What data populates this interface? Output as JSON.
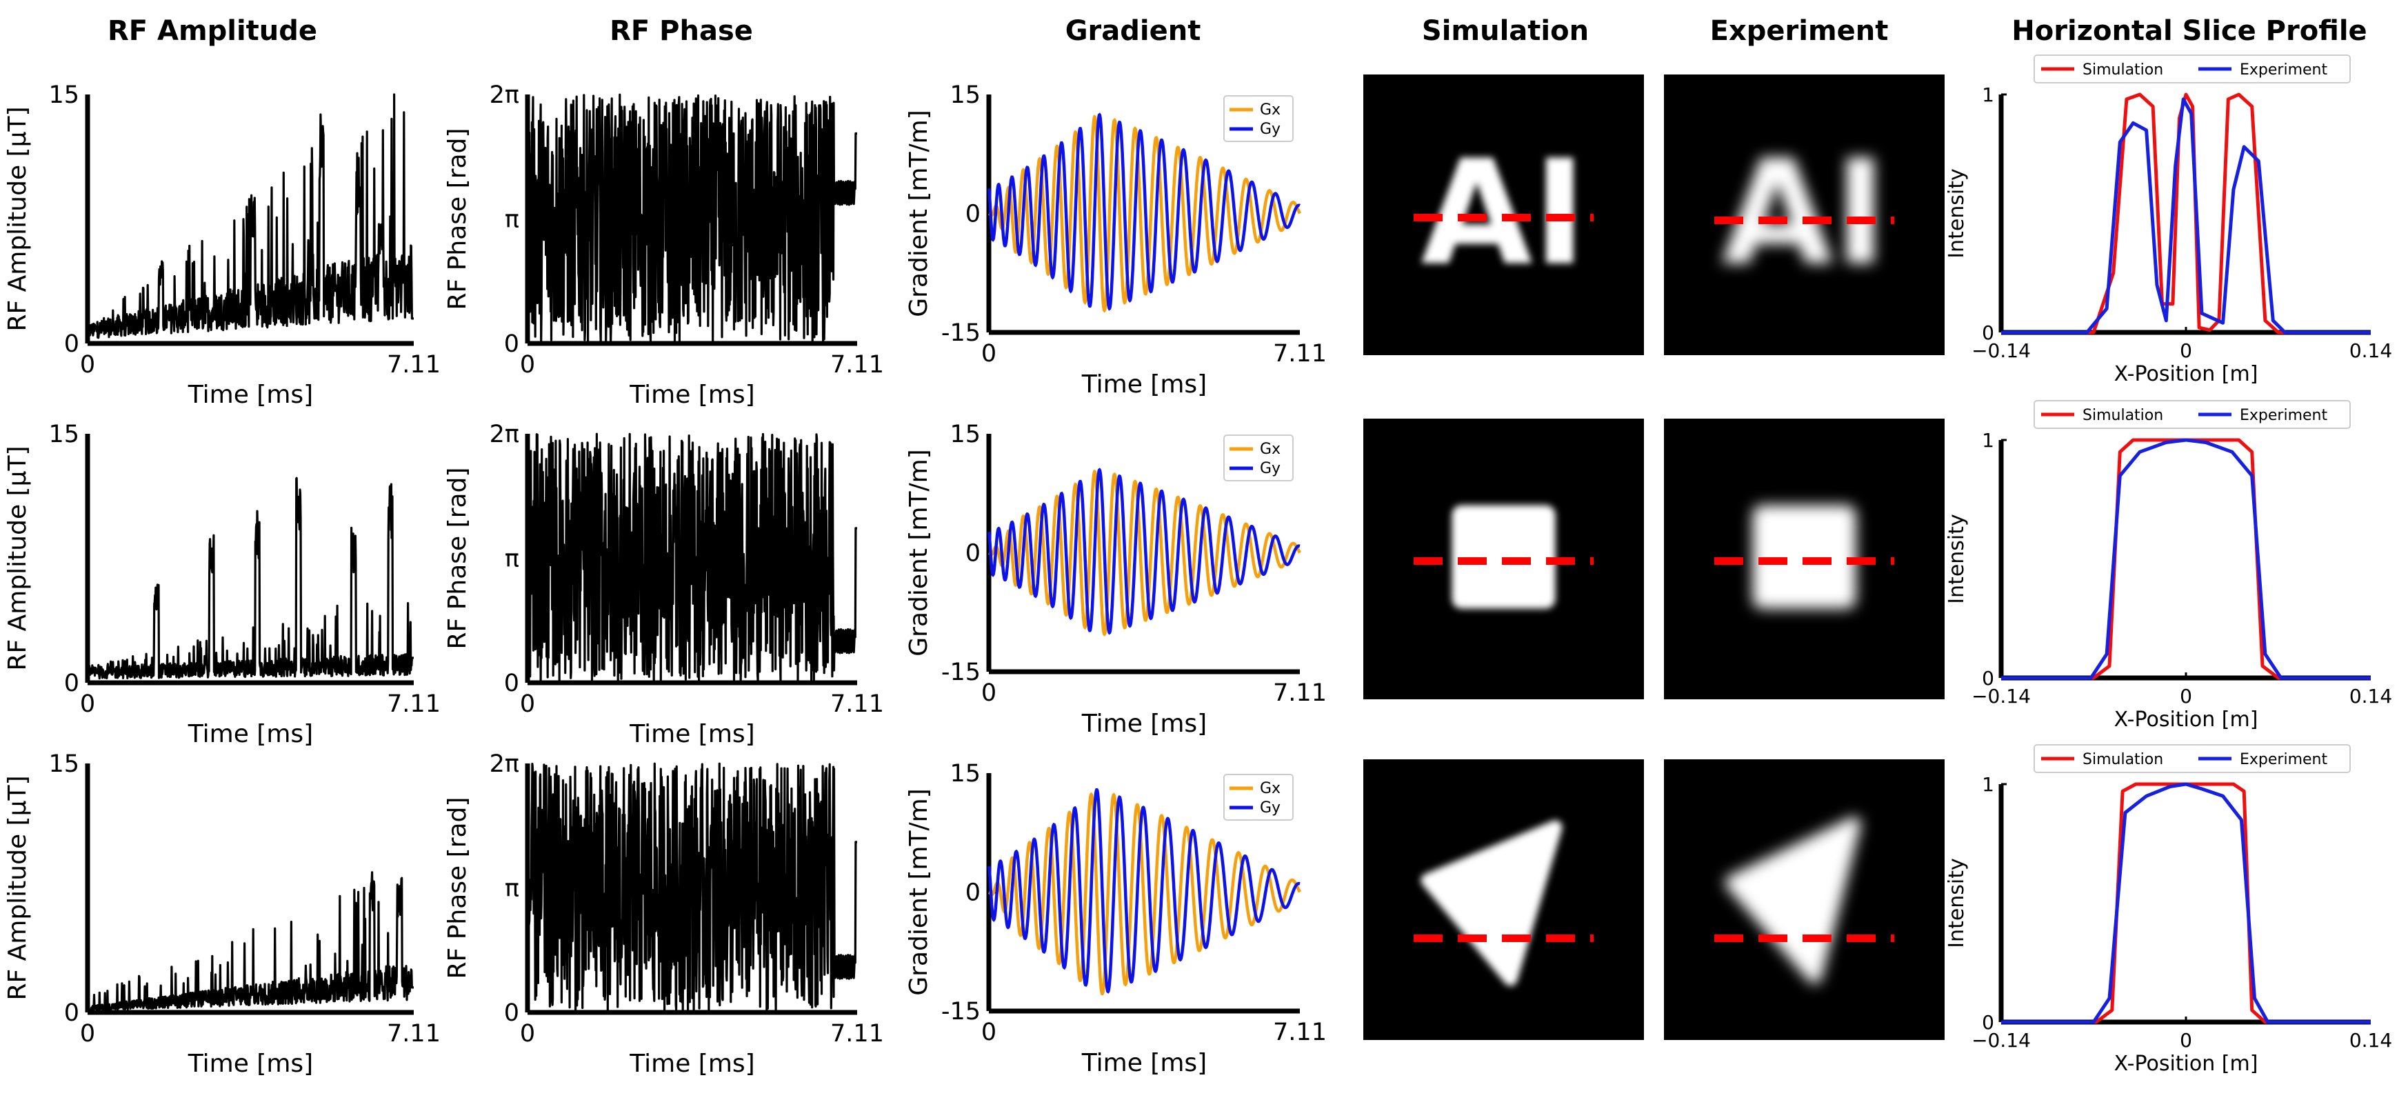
{
  "column_titles": [
    "RF Amplitude",
    "RF Phase",
    "Gradient",
    "Simulation",
    "Experiment",
    "Horizontal Slice Profile"
  ],
  "colors": {
    "trace": "#000000",
    "gx": "#f5a10f",
    "gy": "#0d12e8",
    "simulation": "#ee1010",
    "experiment": "#1520e0",
    "dashed_line": "#ff0000",
    "image_bg": "#000000"
  },
  "chart_data": [
    {
      "type": "line",
      "panel": "rf-amplitude",
      "row": 1,
      "xlabel": "Time [ms]",
      "ylabel": "RF Amplitude [μT]",
      "xlim": [
        0,
        7.11
      ],
      "ylim": [
        0,
        15
      ],
      "xticklabels": [
        "0",
        "7.11"
      ],
      "yticklabels": [
        "0",
        "15"
      ],
      "trend": {
        "base": [
          1,
          5
        ],
        "peak_times": [
          1.6,
          3.6,
          5.1,
          5.9,
          6.4
        ],
        "peak_values": [
          5,
          9,
          13.8,
          10.5,
          7.3
        ]
      }
    },
    {
      "type": "line",
      "panel": "rf-phase",
      "row": 1,
      "xlabel": "Time [ms]",
      "ylabel": "RF Phase [rad]",
      "xlim": [
        0,
        7.11
      ],
      "ylim": [
        0,
        6.283
      ],
      "xticklabels": [
        "0",
        "7.11"
      ],
      "yticklabels": [
        "0",
        "π",
        "2π"
      ],
      "end_values": [
        3.8,
        5.3
      ]
    },
    {
      "type": "line",
      "panel": "gradient",
      "row": 1,
      "xlabel": "Time [ms]",
      "ylabel": "Gradient [mT/m]",
      "xlim": [
        0,
        7.11
      ],
      "ylim": [
        -15,
        15
      ],
      "xticklabels": [
        "0",
        "7.11"
      ],
      "yticklabels": [
        "-15",
        "0",
        "15"
      ],
      "series": [
        {
          "name": "Gx",
          "peak_amplitude": 12.5
        },
        {
          "name": "Gy",
          "peak_amplitude": 12.5
        }
      ],
      "cycles": 16
    },
    {
      "type": "line",
      "panel": "horizontal-slice-profile",
      "row": 1,
      "xlabel": "X-Position [m]",
      "ylabel": "Intensity",
      "xlim": [
        -0.14,
        0.14
      ],
      "ylim": [
        0,
        1
      ],
      "xticklabels": [
        "−0.14",
        "0",
        "0.14"
      ],
      "yticklabels": [
        "0",
        "1"
      ],
      "series": [
        {
          "name": "Simulation",
          "x": [
            -0.14,
            -0.07,
            -0.055,
            -0.045,
            -0.035,
            -0.025,
            -0.018,
            -0.01,
            -0.005,
            0.0,
            0.005,
            0.01,
            0.018,
            0.025,
            0.032,
            0.04,
            0.05,
            0.06,
            0.07,
            0.14
          ],
          "y": [
            0,
            0,
            0.25,
            0.98,
            1.0,
            0.95,
            0.12,
            0.12,
            0.9,
            1.0,
            0.95,
            0.02,
            0.01,
            0.05,
            0.98,
            1.0,
            0.95,
            0.05,
            0,
            0
          ]
        },
        {
          "name": "Experiment",
          "x": [
            -0.14,
            -0.075,
            -0.06,
            -0.05,
            -0.04,
            -0.03,
            -0.022,
            -0.015,
            -0.008,
            -0.002,
            0.004,
            0.012,
            0.02,
            0.028,
            0.036,
            0.044,
            0.055,
            0.066,
            0.075,
            0.14
          ],
          "y": [
            0,
            0,
            0.1,
            0.8,
            0.88,
            0.85,
            0.2,
            0.05,
            0.7,
            0.98,
            0.92,
            0.08,
            0.06,
            0.04,
            0.6,
            0.78,
            0.72,
            0.05,
            0,
            0
          ]
        }
      ]
    },
    {
      "type": "line",
      "panel": "rf-amplitude",
      "row": 2,
      "xlabel": "Time [ms]",
      "ylabel": "RF Amplitude [μT]",
      "xlim": [
        0,
        7.11
      ],
      "ylim": [
        0,
        15
      ],
      "xticklabels": [
        "0",
        "7.11"
      ],
      "yticklabels": [
        "0",
        "15"
      ],
      "trend": {
        "base": [
          0.8,
          1.5
        ],
        "peak_times": [
          1.5,
          2.7,
          3.7,
          4.6,
          5.8,
          6.6
        ],
        "peak_values": [
          6,
          9,
          10.5,
          12.5,
          9.5,
          12
        ]
      }
    },
    {
      "type": "line",
      "panel": "rf-phase",
      "row": 2,
      "xlabel": "Time [ms]",
      "ylabel": "RF Phase [rad]",
      "xlim": [
        0,
        7.11
      ],
      "ylim": [
        0,
        6.283
      ],
      "xticklabels": [
        "0",
        "7.11"
      ],
      "yticklabels": [
        "0",
        "π",
        "2π"
      ],
      "end_values": [
        1.05,
        3.9
      ]
    },
    {
      "type": "line",
      "panel": "gradient",
      "row": 2,
      "xlabel": "Time [ms]",
      "ylabel": "Gradient [mT/m]",
      "xlim": [
        0,
        7.11
      ],
      "ylim": [
        -15,
        15
      ],
      "xticklabels": [
        "0",
        "7.11"
      ],
      "yticklabels": [
        "-15",
        "0",
        "15"
      ],
      "series": [
        {
          "name": "Gx",
          "peak_amplitude": 10.5
        },
        {
          "name": "Gy",
          "peak_amplitude": 10.5
        }
      ],
      "cycles": 16
    },
    {
      "type": "line",
      "panel": "horizontal-slice-profile",
      "row": 2,
      "xlabel": "X-Position [m]",
      "ylabel": "Intensity",
      "xlim": [
        -0.14,
        0.14
      ],
      "ylim": [
        0,
        1
      ],
      "xticklabels": [
        "−0.14",
        "0",
        "0.14"
      ],
      "yticklabels": [
        "0",
        "1"
      ],
      "series": [
        {
          "name": "Simulation",
          "x": [
            -0.14,
            -0.07,
            -0.058,
            -0.05,
            -0.04,
            0.0,
            0.04,
            0.05,
            0.058,
            0.07,
            0.14
          ],
          "y": [
            0,
            0,
            0.05,
            0.95,
            1.0,
            1.0,
            1.0,
            0.95,
            0.05,
            0,
            0
          ]
        },
        {
          "name": "Experiment",
          "x": [
            -0.14,
            -0.072,
            -0.06,
            -0.05,
            -0.035,
            -0.015,
            0.0,
            0.015,
            0.035,
            0.05,
            0.06,
            0.072,
            0.14
          ],
          "y": [
            0,
            0,
            0.1,
            0.85,
            0.95,
            0.99,
            1.0,
            0.99,
            0.95,
            0.85,
            0.1,
            0,
            0
          ]
        }
      ]
    },
    {
      "type": "line",
      "panel": "rf-amplitude",
      "row": 3,
      "xlabel": "Time [ms]",
      "ylabel": "RF Amplitude [μT]",
      "xlim": [
        0,
        7.11
      ],
      "ylim": [
        0,
        15
      ],
      "xticklabels": [
        "0",
        "7.11"
      ],
      "yticklabels": [
        "0",
        "15"
      ],
      "trend": {
        "base": [
          0.3,
          2.5
        ],
        "peak_times": [
          6.2,
          6.8
        ],
        "peak_values": [
          8.5,
          8.2
        ]
      }
    },
    {
      "type": "line",
      "panel": "rf-phase",
      "row": 3,
      "xlabel": "Time [ms]",
      "ylabel": "RF Phase [rad]",
      "xlim": [
        0,
        7.11
      ],
      "ylim": [
        0,
        6.283
      ],
      "xticklabels": [
        "0",
        "7.11"
      ],
      "yticklabels": [
        "0",
        "π",
        "2π"
      ],
      "end_values": [
        1.15,
        4.3
      ]
    },
    {
      "type": "line",
      "panel": "gradient",
      "row": 3,
      "xlabel": "Time [ms]",
      "ylabel": "Gradient [mT/m]",
      "xlim": [
        0,
        7.11
      ],
      "ylim": [
        -15,
        15
      ],
      "xticklabels": [
        "0",
        "7.11"
      ],
      "yticklabels": [
        "-15",
        "0",
        "15"
      ],
      "series": [
        {
          "name": "Gx",
          "peak_amplitude": 13
        },
        {
          "name": "Gy",
          "peak_amplitude": 13
        }
      ],
      "cycles": 14
    },
    {
      "type": "line",
      "panel": "horizontal-slice-profile",
      "row": 3,
      "xlabel": "X-Position [m]",
      "ylabel": "Intensity",
      "xlim": [
        -0.14,
        0.14
      ],
      "ylim": [
        0,
        1
      ],
      "xticklabels": [
        "−0.14",
        "0",
        "0.14"
      ],
      "yticklabels": [
        "0",
        "1"
      ],
      "series": [
        {
          "name": "Simulation",
          "x": [
            -0.14,
            -0.068,
            -0.056,
            -0.048,
            -0.038,
            0.0,
            0.036,
            0.044,
            0.05,
            0.06,
            0.14
          ],
          "y": [
            0,
            0,
            0.05,
            0.97,
            1.0,
            1.0,
            1.0,
            0.97,
            0.05,
            0,
            0
          ]
        },
        {
          "name": "Experiment",
          "x": [
            -0.14,
            -0.07,
            -0.058,
            -0.046,
            -0.03,
            -0.012,
            0.0,
            0.012,
            0.028,
            0.042,
            0.052,
            0.062,
            0.14
          ],
          "y": [
            0,
            0,
            0.1,
            0.88,
            0.95,
            0.99,
            1.0,
            0.98,
            0.95,
            0.85,
            0.1,
            0,
            0
          ]
        }
      ]
    }
  ],
  "images": [
    {
      "row": 1,
      "shape": "AI letters",
      "simulation_title": "Simulation",
      "experiment_title": "Experiment"
    },
    {
      "row": 2,
      "shape": "square"
    },
    {
      "row": 3,
      "shape": "triangle"
    }
  ],
  "image_text": {
    "ai_letters": "AI"
  }
}
